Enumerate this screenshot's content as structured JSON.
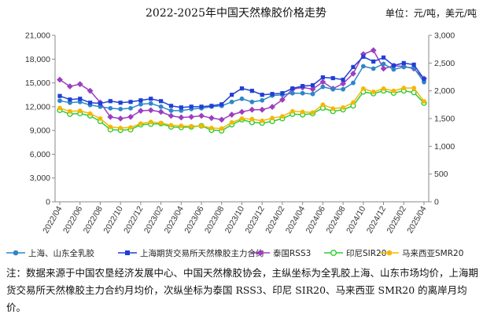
{
  "chart_data": {
    "type": "line",
    "title": "2022-2025年中国天然橡胶价格走势",
    "unit_label": "单位：元/吨，美元/吨",
    "x": [
      "2022/04",
      "2022/05",
      "2022/06",
      "2022/07",
      "2022/08",
      "2022/09",
      "2022/10",
      "2022/11",
      "2022/12",
      "2023/01",
      "2023/02",
      "2023/03",
      "2023/04",
      "2023/05",
      "2023/06",
      "2023/07",
      "2023/08",
      "2023/09",
      "2023/10",
      "2023/11",
      "2023/12",
      "2024/01",
      "2024/02",
      "2024/03",
      "2024/04",
      "2024/05",
      "2024/06",
      "2024/07",
      "2024/08",
      "2024/09",
      "2024/10",
      "2024/11",
      "2024/12",
      "2025/01",
      "2025/02",
      "2025/03",
      "2025/04"
    ],
    "x_tick_labels": [
      "2022/04",
      "2022/06",
      "2022/08",
      "2022/10",
      "2022/12",
      "2023/02",
      "2023/04",
      "2023/06",
      "2023/08",
      "2023/10",
      "2023/12",
      "2024/02",
      "2024/04",
      "2024/06",
      "2024/08",
      "2024/10",
      "2024/12",
      "2025/02",
      "2025/04"
    ],
    "y_left": {
      "min": 0,
      "max": 21000,
      "ticks": [
        "0",
        "3,000",
        "6,000",
        "9,000",
        "12,000",
        "15,000",
        "18,000",
        "21,000"
      ]
    },
    "y_right": {
      "min": 0,
      "max": 3000,
      "ticks": [
        "0",
        "500",
        "1,000",
        "1,500",
        "2,000",
        "2,500",
        "3,000"
      ]
    },
    "grid": false,
    "legend_position": "bottom",
    "series": [
      {
        "name": "上海、山东全乳胶",
        "axis": "left",
        "color": "#2e86c9",
        "marker": "circle",
        "values": [
          12750,
          12500,
          12600,
          12200,
          12000,
          11800,
          11700,
          11800,
          12300,
          12400,
          12000,
          11500,
          11500,
          11700,
          11800,
          12000,
          12100,
          12600,
          13000,
          12600,
          12800,
          13400,
          13500,
          13700,
          13700,
          13600,
          14500,
          14200,
          14200,
          15000,
          17100,
          16800,
          17400,
          16700,
          17000,
          16900,
          15100
        ]
      },
      {
        "name": "上海期货交易所天然橡胶主力合约",
        "axis": "left",
        "color": "#1f3fd6",
        "marker": "square",
        "values": [
          13350,
          12900,
          13000,
          12500,
          12400,
          12700,
          12500,
          12600,
          12800,
          13000,
          12700,
          12100,
          11900,
          12000,
          12000,
          12100,
          12300,
          13500,
          14300,
          14000,
          13500,
          13600,
          13700,
          14300,
          14600,
          14700,
          15700,
          15600,
          15400,
          17000,
          18300,
          17700,
          18200,
          17200,
          17500,
          17300,
          15500
        ]
      },
      {
        "name": "泰国RSS3",
        "axis": "right",
        "color": "#9b3fbf",
        "marker": "diamond",
        "values": [
          2200,
          2080,
          2120,
          2000,
          1790,
          1530,
          1500,
          1530,
          1640,
          1650,
          1620,
          1550,
          1520,
          1530,
          1550,
          1510,
          1480,
          1570,
          1620,
          1660,
          1660,
          1710,
          1840,
          2030,
          2060,
          2030,
          2160,
          2040,
          2130,
          2310,
          2660,
          2730,
          2400,
          2450,
          2440,
          2400,
          2220
        ]
      },
      {
        "name": "印尼SIR20",
        "axis": "right",
        "color": "#33cc33",
        "marker": "circle-open",
        "values": [
          1650,
          1580,
          1590,
          1550,
          1450,
          1300,
          1290,
          1300,
          1390,
          1400,
          1410,
          1350,
          1340,
          1350,
          1370,
          1290,
          1280,
          1390,
          1480,
          1430,
          1420,
          1450,
          1500,
          1580,
          1570,
          1590,
          1690,
          1630,
          1660,
          1730,
          1980,
          1950,
          2000,
          1960,
          2000,
          1970,
          1780
        ]
      },
      {
        "name": "马来西亚SMR20",
        "axis": "right",
        "color": "#f5b800",
        "marker": "circle",
        "values": [
          1690,
          1630,
          1640,
          1590,
          1500,
          1350,
          1330,
          1340,
          1410,
          1440,
          1420,
          1380,
          1370,
          1360,
          1370,
          1330,
          1320,
          1430,
          1500,
          1490,
          1460,
          1510,
          1540,
          1630,
          1620,
          1610,
          1750,
          1680,
          1700,
          1790,
          2040,
          1980,
          2040,
          2000,
          2050,
          2050,
          1810
        ]
      }
    ]
  },
  "note": "注：数据来源于中国农垦经济发展中心、中国天然橡胶协会，主纵坐标为全乳胶上海、山东市场均价，上海期货交易所天然橡胶主力合约月均价，次纵坐标为泰国 RSS3、印尼 SIR20、马来西亚 SMR20 的离岸月均价。"
}
